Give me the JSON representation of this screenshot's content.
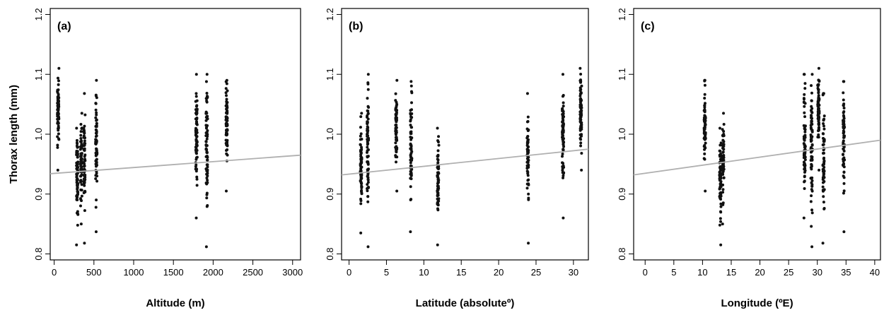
{
  "y_axis_label": "Thorax length (mm)",
  "chart_data": [
    {
      "type": "scatter",
      "panel_label": "(a)",
      "xlabel": "Altitude (m)",
      "xlim": [
        -50,
        3100
      ],
      "ylim": [
        0.79,
        1.21
      ],
      "x_ticks": [
        0,
        500,
        1000,
        1500,
        2000,
        2500,
        3000
      ],
      "x_tick_labels": [
        "0",
        "500",
        "1000",
        "1500",
        "2000",
        "2500",
        "3000"
      ],
      "y_ticks": [
        0.8,
        0.9,
        1.0,
        1.1,
        1.2
      ],
      "y_tick_labels": [
        "0.8",
        "0.9",
        "1.0",
        "1.1",
        "1.2"
      ],
      "trend_line": {
        "x": [
          -50,
          3100
        ],
        "y": [
          0.934,
          0.965
        ]
      },
      "groups": [
        {
          "x": 50,
          "ymin": 0.94,
          "ymax": 1.11,
          "n": 80
        },
        {
          "x": 290,
          "ymin": 0.815,
          "ymax": 1.01,
          "n": 70
        },
        {
          "x": 340,
          "ymin": 0.85,
          "ymax": 1.035,
          "n": 70
        },
        {
          "x": 380,
          "ymin": 0.818,
          "ymax": 1.068,
          "n": 60
        },
        {
          "x": 530,
          "ymin": 0.837,
          "ymax": 1.09,
          "n": 65
        },
        {
          "x": 1790,
          "ymin": 0.86,
          "ymax": 1.1,
          "n": 75
        },
        {
          "x": 1920,
          "ymin": 0.812,
          "ymax": 1.1,
          "n": 75
        },
        {
          "x": 2170,
          "ymin": 0.905,
          "ymax": 1.09,
          "n": 70
        }
      ]
    },
    {
      "type": "scatter",
      "panel_label": "(b)",
      "xlabel": "Latitude (absoluteº)",
      "xlim": [
        -1,
        32
      ],
      "ylim": [
        0.79,
        1.21
      ],
      "x_ticks": [
        0,
        5,
        10,
        15,
        20,
        25,
        30
      ],
      "x_tick_labels": [
        "0",
        "5",
        "10",
        "15",
        "20",
        "25",
        "30"
      ],
      "y_ticks": [
        0.8,
        0.9,
        1.0,
        1.1,
        1.2
      ],
      "y_tick_labels": [
        "0.8",
        "0.9",
        "1.0",
        "1.1",
        "1.2"
      ],
      "trend_line": {
        "x": [
          -1,
          32
        ],
        "y": [
          0.932,
          0.975
        ]
      },
      "groups": [
        {
          "x": 1.6,
          "ymin": 0.835,
          "ymax": 1.035,
          "n": 70
        },
        {
          "x": 2.5,
          "ymin": 0.812,
          "ymax": 1.1,
          "n": 75
        },
        {
          "x": 6.3,
          "ymin": 0.905,
          "ymax": 1.09,
          "n": 65
        },
        {
          "x": 8.3,
          "ymin": 0.837,
          "ymax": 1.088,
          "n": 65
        },
        {
          "x": 11.9,
          "ymin": 0.815,
          "ymax": 1.01,
          "n": 70
        },
        {
          "x": 23.9,
          "ymin": 0.818,
          "ymax": 1.068,
          "n": 60
        },
        {
          "x": 28.6,
          "ymin": 0.86,
          "ymax": 1.1,
          "n": 75
        },
        {
          "x": 31.0,
          "ymin": 0.94,
          "ymax": 1.11,
          "n": 80
        }
      ]
    },
    {
      "type": "scatter",
      "panel_label": "(c)",
      "xlabel": "Longitude (ºE)",
      "xlim": [
        -2,
        41
      ],
      "ylim": [
        0.79,
        1.21
      ],
      "x_ticks": [
        0,
        5,
        10,
        15,
        20,
        25,
        30,
        35,
        40
      ],
      "x_tick_labels": [
        "0",
        "5",
        "10",
        "15",
        "20",
        "25",
        "30",
        "35",
        "40"
      ],
      "y_ticks": [
        0.8,
        0.9,
        1.0,
        1.1,
        1.2
      ],
      "y_tick_labels": [
        "0.8",
        "0.9",
        "1.0",
        "1.1",
        "1.2"
      ],
      "trend_line": {
        "x": [
          -2,
          41
        ],
        "y": [
          0.932,
          0.99
        ]
      },
      "groups": [
        {
          "x": 10.4,
          "ymin": 0.905,
          "ymax": 1.09,
          "n": 65
        },
        {
          "x": 13.1,
          "ymin": 0.815,
          "ymax": 1.01,
          "n": 70
        },
        {
          "x": 13.6,
          "ymin": 0.85,
          "ymax": 1.035,
          "n": 70
        },
        {
          "x": 27.8,
          "ymin": 0.86,
          "ymax": 1.1,
          "n": 75
        },
        {
          "x": 29.0,
          "ymin": 0.812,
          "ymax": 1.1,
          "n": 75
        },
        {
          "x": 30.2,
          "ymin": 0.94,
          "ymax": 1.11,
          "n": 80
        },
        {
          "x": 31.1,
          "ymin": 0.818,
          "ymax": 1.068,
          "n": 60
        },
        {
          "x": 34.6,
          "ymin": 0.837,
          "ymax": 1.088,
          "n": 65
        }
      ]
    }
  ],
  "colors": {
    "points": "#111111",
    "trend_line": "#b0b0b0",
    "axes": "#000000"
  }
}
